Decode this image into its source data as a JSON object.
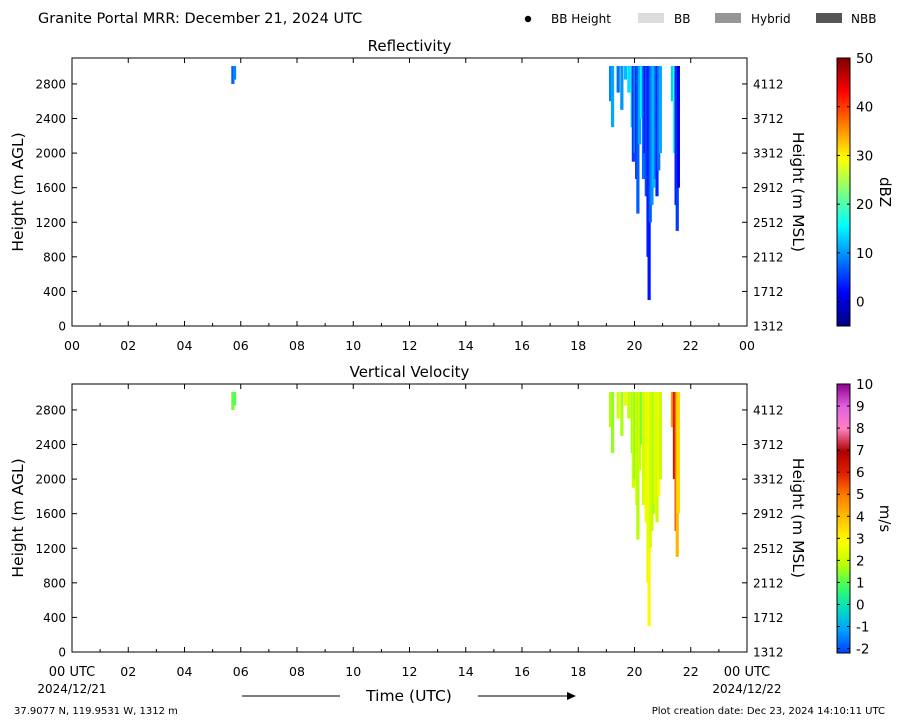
{
  "header": {
    "title": "Granite Portal MRR:  December 21, 2024 UTC"
  },
  "legend": [
    {
      "label": "BB Height",
      "color": "#000000",
      "kind": "dot"
    },
    {
      "label": "BB",
      "color": "#dcdcdc",
      "kind": "rect"
    },
    {
      "label": "Hybrid",
      "color": "#969696",
      "kind": "rect"
    },
    {
      "label": "NBB",
      "color": "#555555",
      "kind": "rect"
    }
  ],
  "footer": {
    "location": "37.9077 N, 119.9531 W, 1312 m",
    "creation": "Plot creation date: Dec 23, 2024 14:10:11 UTC",
    "xlabel": "Time (UTC)",
    "start_time": "00 UTC",
    "start_date": "2024/12/21",
    "end_time": "00 UTC",
    "end_date": "2024/12/22"
  },
  "chart_data": [
    {
      "type": "heatmap",
      "title": "Reflectivity",
      "ylabel": "Height (m AGL)",
      "ylabel_right": "Height (m MSL)",
      "colorbar_label": "dBZ",
      "x_ticks": [
        "00",
        "02",
        "04",
        "06",
        "08",
        "10",
        "12",
        "14",
        "16",
        "18",
        "20",
        "22",
        "00"
      ],
      "xlim": [
        0,
        24
      ],
      "ylim": [
        0,
        3100
      ],
      "y_ticks": [
        0,
        400,
        800,
        1200,
        1600,
        2000,
        2400,
        2800
      ],
      "y_ticks_right": [
        "1312",
        "1712",
        "2112",
        "2512",
        "2912",
        "3312",
        "3712",
        "4112"
      ],
      "colorbar": {
        "min": -5,
        "max": 50,
        "ticks": [
          "0",
          "10",
          "20",
          "30",
          "40",
          "50"
        ],
        "tick_values": [
          0,
          10,
          20,
          30,
          40,
          50
        ],
        "stops": [
          "#00007f",
          "#0000ff",
          "#007fff",
          "#00ffff",
          "#7fff7f",
          "#ffff00",
          "#ff7f00",
          "#ff0000",
          "#7f0000"
        ]
      },
      "streaks": [
        {
          "t": 5.72,
          "base": 2800,
          "value": 7
        },
        {
          "t": 5.78,
          "base": 2850,
          "value": 9
        },
        {
          "t": 19.15,
          "base": 2600,
          "value": 9
        },
        {
          "t": 19.22,
          "base": 2300,
          "value": 11
        },
        {
          "t": 19.42,
          "base": 2700,
          "value": 8
        },
        {
          "t": 19.55,
          "base": 2500,
          "value": 10
        },
        {
          "t": 19.68,
          "base": 2850,
          "value": 12
        },
        {
          "t": 19.8,
          "base": 2700,
          "value": 14
        },
        {
          "t": 19.92,
          "base": 2300,
          "value": 13
        },
        {
          "t": 19.96,
          "base": 1900,
          "value": 5
        },
        {
          "t": 20.02,
          "base": 2000,
          "value": 9
        },
        {
          "t": 20.08,
          "base": 1700,
          "value": 3
        },
        {
          "t": 20.12,
          "base": 1300,
          "value": 7
        },
        {
          "t": 20.18,
          "base": 2100,
          "value": 11
        },
        {
          "t": 20.25,
          "base": 2400,
          "value": 15
        },
        {
          "t": 20.32,
          "base": 1700,
          "value": 8
        },
        {
          "t": 20.38,
          "base": 2000,
          "value": 2
        },
        {
          "t": 20.42,
          "base": 1500,
          "value": 6
        },
        {
          "t": 20.48,
          "base": 800,
          "value": 4
        },
        {
          "t": 20.52,
          "base": 300,
          "value": 3
        },
        {
          "t": 20.56,
          "base": 1200,
          "value": 7
        },
        {
          "t": 20.62,
          "base": 1400,
          "value": 10
        },
        {
          "t": 20.68,
          "base": 1600,
          "value": 12
        },
        {
          "t": 20.74,
          "base": 1700,
          "value": 9
        },
        {
          "t": 20.8,
          "base": 1500,
          "value": 4
        },
        {
          "t": 20.86,
          "base": 1800,
          "value": 8
        },
        {
          "t": 20.92,
          "base": 2000,
          "value": 11
        },
        {
          "t": 21.35,
          "base": 2600,
          "value": 13
        },
        {
          "t": 21.42,
          "base": 2000,
          "value": 18
        },
        {
          "t": 21.48,
          "base": 1400,
          "value": 3
        },
        {
          "t": 21.52,
          "base": 1100,
          "value": 5
        },
        {
          "t": 21.56,
          "base": 1600,
          "value": 1
        }
      ]
    },
    {
      "type": "heatmap",
      "title": "Vertical Velocity",
      "ylabel": "Height (m AGL)",
      "ylabel_right": "Height (m MSL)",
      "colorbar_label": "m/s",
      "x_ticks": [
        "02",
        "04",
        "06",
        "08",
        "10",
        "12",
        "14",
        "16",
        "18",
        "20",
        "22"
      ],
      "x_tick_values": [
        2,
        4,
        6,
        8,
        10,
        12,
        14,
        16,
        18,
        20,
        22
      ],
      "xlim": [
        0,
        24
      ],
      "ylim": [
        0,
        3100
      ],
      "y_ticks": [
        0,
        400,
        800,
        1200,
        1600,
        2000,
        2400,
        2800
      ],
      "y_ticks_right": [
        "1312",
        "1712",
        "2112",
        "2512",
        "2912",
        "3312",
        "3712",
        "4112"
      ],
      "colorbar": {
        "min": -2.2,
        "max": 10,
        "ticks": [
          "-2",
          "-1",
          "0",
          "1",
          "2",
          "3",
          "4",
          "5",
          "6",
          "7",
          "8",
          "9",
          "10"
        ],
        "tick_values": [
          -2,
          -1,
          0,
          1,
          2,
          3,
          4,
          5,
          6,
          7,
          8,
          9,
          10
        ],
        "stops": [
          "#0040ff",
          "#00a0ff",
          "#00e0c0",
          "#40ff60",
          "#c0ff00",
          "#ffff00",
          "#ffc000",
          "#ff8000",
          "#e02000",
          "#b00000",
          "#ff80c0",
          "#e060e0",
          "#900090"
        ]
      },
      "streaks": [
        {
          "t": 5.72,
          "base": 2800,
          "value": 1.2
        },
        {
          "t": 5.78,
          "base": 2850,
          "value": 1.0
        },
        {
          "t": 19.15,
          "base": 2600,
          "value": 1.8
        },
        {
          "t": 19.22,
          "base": 2300,
          "value": 1.5
        },
        {
          "t": 19.42,
          "base": 2700,
          "value": 2.2
        },
        {
          "t": 19.55,
          "base": 2500,
          "value": 1.7
        },
        {
          "t": 19.68,
          "base": 2850,
          "value": 2.5
        },
        {
          "t": 19.8,
          "base": 2700,
          "value": 1.9
        },
        {
          "t": 19.92,
          "base": 2300,
          "value": 1.6
        },
        {
          "t": 19.96,
          "base": 1900,
          "value": 2.1
        },
        {
          "t": 20.02,
          "base": 2000,
          "value": 1.4
        },
        {
          "t": 20.08,
          "base": 1700,
          "value": 2.4
        },
        {
          "t": 20.12,
          "base": 1300,
          "value": 1.8
        },
        {
          "t": 20.18,
          "base": 2100,
          "value": 2.0
        },
        {
          "t": 20.25,
          "base": 2400,
          "value": 1.3
        },
        {
          "t": 20.32,
          "base": 1700,
          "value": 2.3
        },
        {
          "t": 20.38,
          "base": 2000,
          "value": 1.9
        },
        {
          "t": 20.42,
          "base": 1500,
          "value": 2.6
        },
        {
          "t": 20.48,
          "base": 800,
          "value": 2.4
        },
        {
          "t": 20.52,
          "base": 300,
          "value": 3.0
        },
        {
          "t": 20.56,
          "base": 1200,
          "value": 2.2
        },
        {
          "t": 20.62,
          "base": 1400,
          "value": 2.0
        },
        {
          "t": 20.68,
          "base": 1600,
          "value": 1.7
        },
        {
          "t": 20.74,
          "base": 1700,
          "value": 2.5
        },
        {
          "t": 20.8,
          "base": 1500,
          "value": 2.1
        },
        {
          "t": 20.86,
          "base": 1800,
          "value": 2.8
        },
        {
          "t": 20.92,
          "base": 2000,
          "value": 2.0
        },
        {
          "t": 21.35,
          "base": 2600,
          "value": 4.5
        },
        {
          "t": 21.42,
          "base": 2000,
          "value": 6.2
        },
        {
          "t": 21.48,
          "base": 1400,
          "value": 5.5
        },
        {
          "t": 21.52,
          "base": 1100,
          "value": 4.0
        },
        {
          "t": 21.56,
          "base": 1600,
          "value": 3.5
        }
      ]
    }
  ]
}
